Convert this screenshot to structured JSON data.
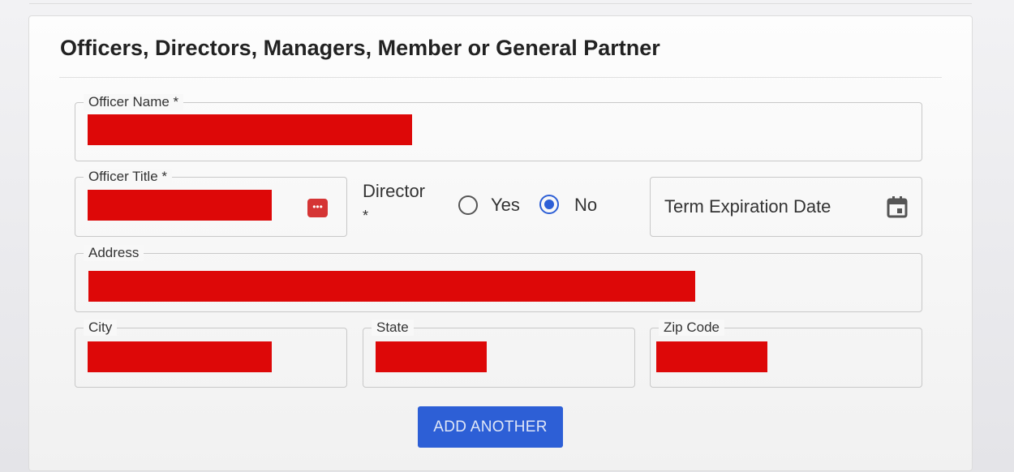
{
  "section": {
    "title": "Officers, Directors, Managers, Member or General Partner"
  },
  "fields": {
    "officer_name": {
      "label": "Officer Name *"
    },
    "officer_title": {
      "label": "Officer Title *"
    },
    "director": {
      "label": "Director",
      "required_mark": "*",
      "options": [
        "Yes",
        "No"
      ],
      "selected": "No"
    },
    "term_expiration": {
      "placeholder": "Term Expiration Date"
    },
    "address": {
      "label": "Address"
    },
    "city": {
      "label": "City"
    },
    "state": {
      "label": "State"
    },
    "zip": {
      "label": "Zip Code"
    }
  },
  "buttons": {
    "add_another": "ADD ANOTHER"
  },
  "colors": {
    "accent": "#2d5fd6",
    "redaction": "#dd0808"
  }
}
